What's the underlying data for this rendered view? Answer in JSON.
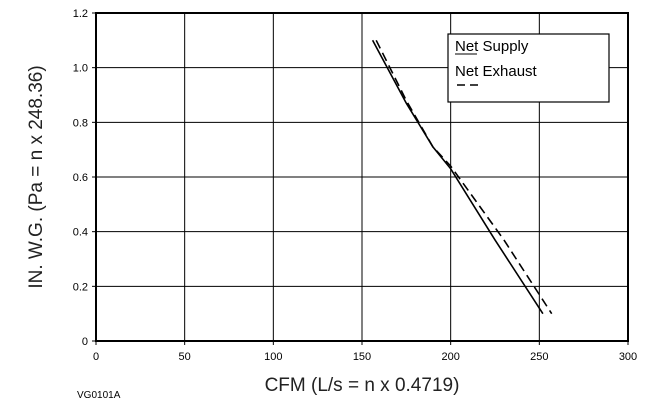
{
  "chart_data": {
    "type": "line",
    "xlabel": "CFM (L/s = n x 0.4719)",
    "ylabel": "IN. W.G. (Pa = n x 248.36)",
    "xlim": [
      0,
      300
    ],
    "ylim": [
      0,
      1.2
    ],
    "x_ticks": [
      "0",
      "50",
      "100",
      "150",
      "200",
      "250",
      "300"
    ],
    "y_ticks": [
      "0",
      "0.2",
      "0.4",
      "0.6",
      "0.8",
      "1.0",
      "1.2"
    ],
    "grid": true,
    "legend_position": "top-right",
    "series": [
      {
        "name": "Net Supply",
        "line_style": "solid",
        "x": [
          156,
          175,
          190,
          200,
          225,
          252
        ],
        "y": [
          1.1,
          0.87,
          0.71,
          0.63,
          0.37,
          0.1
        ]
      },
      {
        "name": "Net Exhaust",
        "line_style": "dashed",
        "x": [
          158,
          175,
          190,
          200,
          230,
          257
        ],
        "y": [
          1.1,
          0.88,
          0.71,
          0.64,
          0.37,
          0.1
        ]
      }
    ]
  },
  "figure_code": "VG0101A"
}
